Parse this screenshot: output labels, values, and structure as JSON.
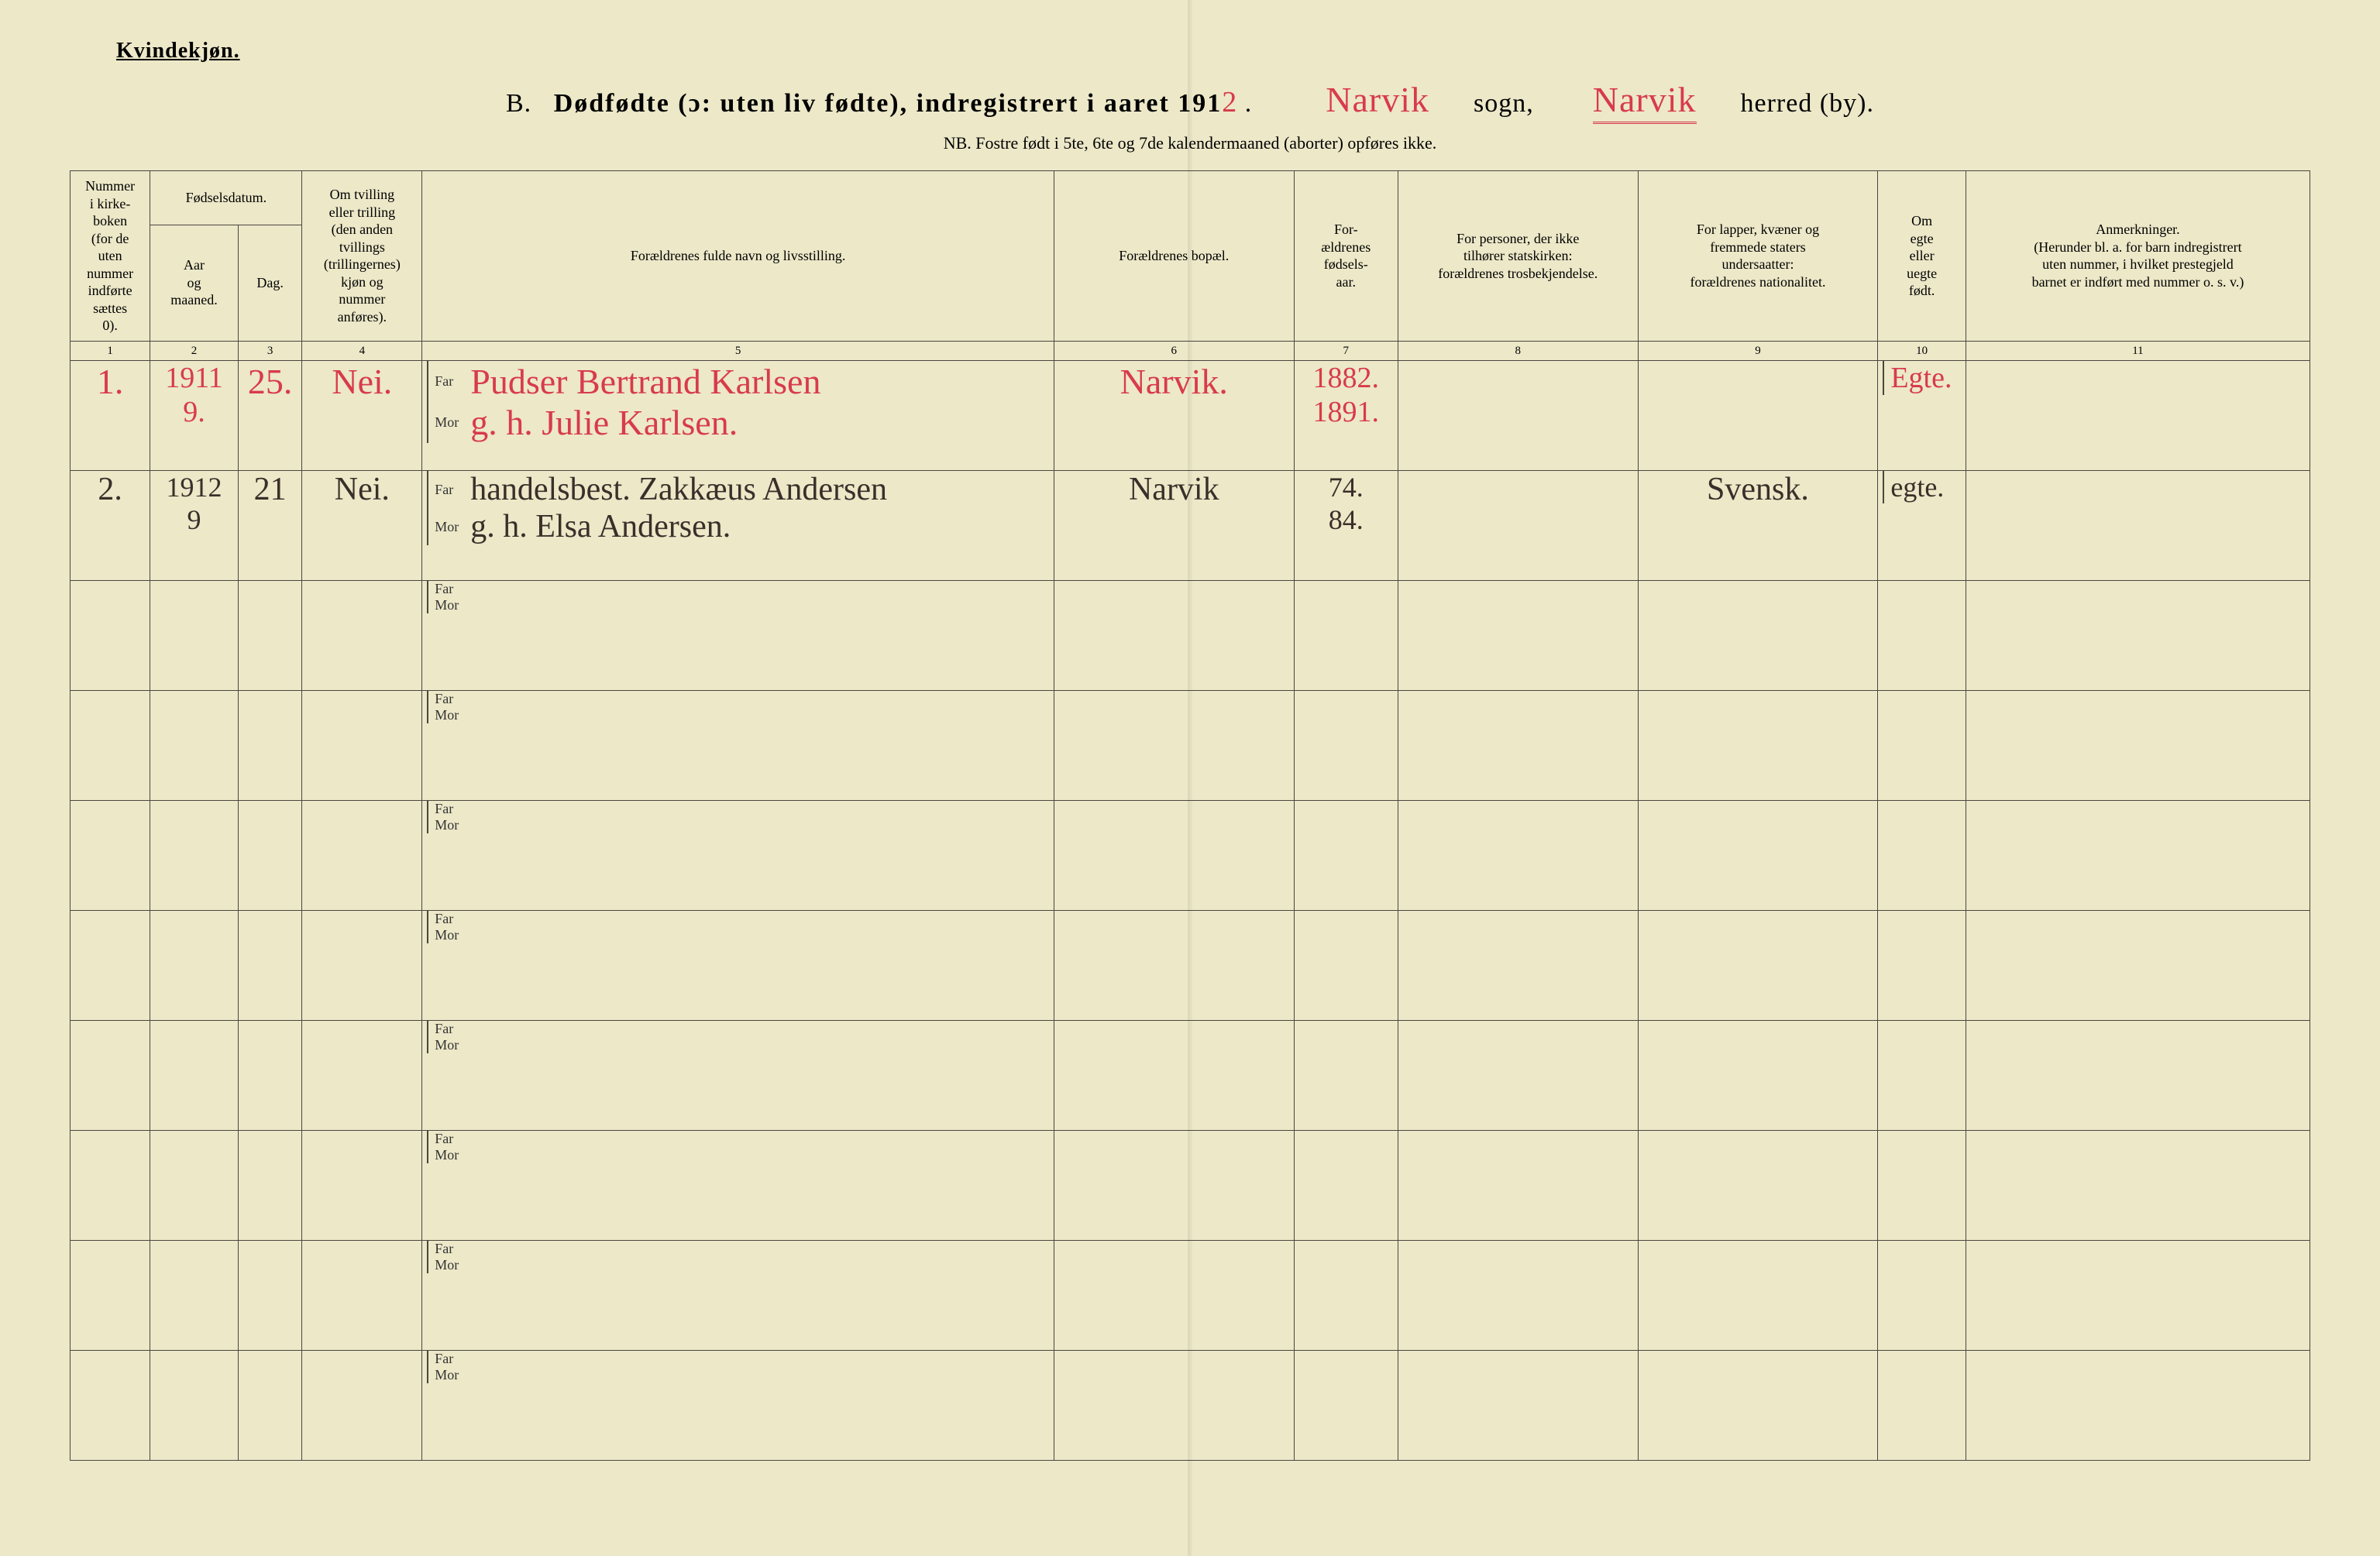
{
  "page": {
    "background_color": "#ece8c8",
    "ink_color": "#2d2a26",
    "red_ink": "#d83b4a",
    "rule_color": "#4a4640"
  },
  "header": {
    "gender": "Kvindekjøn.",
    "section_letter": "B.",
    "title_main": "Dødfødte (ɔ: uten liv fødte), indregistrert i aaret 191",
    "title_year_suffix": "2",
    "title_dot": ".",
    "sogn_value": "Narvik",
    "sogn_label": "sogn,",
    "herred_value": "Narvik",
    "herred_label": "herred (by).",
    "nb_line": "NB.  Fostre født i 5te, 6te og 7de kalendermaaned (aborter) opføres ikke."
  },
  "columns": {
    "c1": "Nummer\ni kirke-\nboken\n(for de\nuten\nnummer\nindførte\nsættes\n0).",
    "c2_group": "Fødselsdatum.",
    "c2a": "Aar\nog\nmaaned.",
    "c2b": "Dag.",
    "c4": "Om tvilling\neller trilling\n(den anden\ntvillings\n(trillingernes)\nkjøn og\nnummer\nanføres).",
    "c5": "Forældrenes fulde navn og livsstilling.",
    "c6": "Forældrenes bopæl.",
    "c7": "For-\nældrenes\nfødsels-\naar.",
    "c8": "For personer, der ikke\ntilhører statskirken:\nforældrenes trosbekjendelse.",
    "c9": "For lapper, kvæner og\nfremmede staters\nundersaatter:\nforældrenes nationalitet.",
    "c10": "Om\negte\neller\nuegte\nfødt.",
    "c11": "Anmerkninger.\n(Herunder bl. a. for barn indregistrert\nuten nummer, i hvilket prestegjeld\nbarnet er indført med nummer o. s. v.)",
    "nums": [
      "1",
      "2",
      "3",
      "4",
      "5",
      "6",
      "7",
      "8",
      "9",
      "10",
      "11"
    ]
  },
  "row_labels": {
    "far": "Far",
    "mor": "Mor"
  },
  "entries": [
    {
      "ink": "red",
      "num": "1.",
      "year_month_top": "1911",
      "year_month_bot": "9.",
      "day": "25.",
      "twin": "Nei.",
      "far": "Pudser  Bertrand  Karlsen",
      "mor": "g. h.   Julie  Karlsen.",
      "bopel": "Narvik.",
      "far_year": "1882.",
      "mor_year": "1891.",
      "col8": "",
      "col9": "",
      "egte": "Egte."
    },
    {
      "ink": "black",
      "num": "2.",
      "year_month_top": "1912",
      "year_month_bot": "9",
      "day": "21",
      "twin": "Nei.",
      "far": "handelsbest.  Zakkæus  Andersen",
      "mor": "g. h.  Elsa  Andersen.",
      "bopel": "Narvik",
      "far_year": "74.",
      "mor_year": "84.",
      "col8": "",
      "col9": "Svensk.",
      "egte": "egte."
    }
  ],
  "blank_rows": 8
}
